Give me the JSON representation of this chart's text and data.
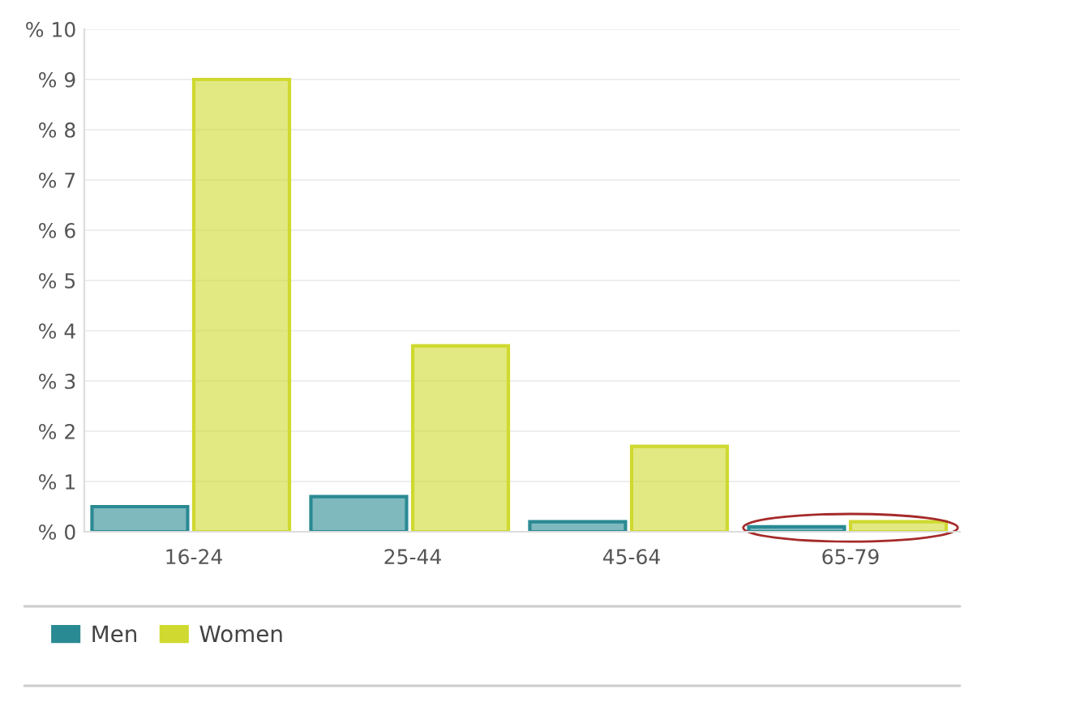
{
  "chart_data": {
    "type": "bar",
    "categories": [
      "16-24",
      "25-44",
      "45-64",
      "65-79"
    ],
    "series": [
      {
        "name": "Men",
        "color": "#2a8a93",
        "values": [
          0.5,
          0.7,
          0.2,
          0.1
        ]
      },
      {
        "name": "Women",
        "color": "#cfd92f",
        "values": [
          9.0,
          3.7,
          1.7,
          0.2
        ]
      }
    ],
    "ylim": [
      0,
      10
    ],
    "yticks": [
      {
        "value": 0,
        "label": "% 0"
      },
      {
        "value": 1,
        "label": "% 1"
      },
      {
        "value": 2,
        "label": "% 2"
      },
      {
        "value": 3,
        "label": "% 3"
      },
      {
        "value": 4,
        "label": "% 4"
      },
      {
        "value": 5,
        "label": "% 5"
      },
      {
        "value": 6,
        "label": "% 6"
      },
      {
        "value": 7,
        "label": "% 7"
      },
      {
        "value": 8,
        "label": "% 8"
      },
      {
        "value": 9,
        "label": "% 9"
      },
      {
        "value": 10,
        "label": "% 10"
      }
    ],
    "grid": "y",
    "legend": "bottom left"
  }
}
